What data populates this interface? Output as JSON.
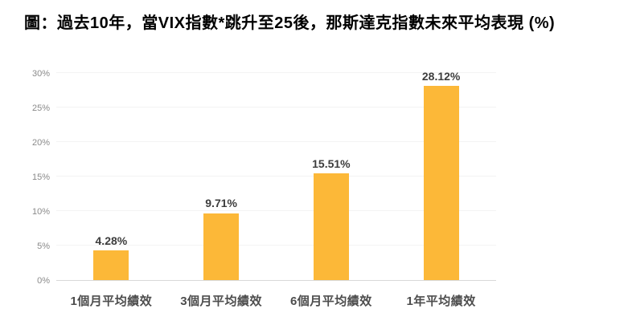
{
  "title": "圖：過去10年，當VIX指數*跳升至25後，那斯達克指數未來平均表現 (%)",
  "colors": {
    "bar": "#FCB838",
    "title_text": "#000000",
    "axis_line": "#d9d9d9",
    "gridline": "#f3f3f3",
    "tick_text": "#8a8a8a",
    "category_text": "#4d4d4d",
    "value_text": "#3d3d3d",
    "background": "#ffffff"
  },
  "chart_data": {
    "type": "bar",
    "title": "圖：過去10年，當VIX指數*跳升至25後，那斯達克指數未來平均表現 (%)",
    "categories": [
      "1個月平均績效",
      "3個月平均績效",
      "6個月平均績效",
      "1年平均績效"
    ],
    "values": [
      4.28,
      9.71,
      15.51,
      28.12
    ],
    "value_labels": [
      "4.28%",
      "9.71%",
      "15.51%",
      "28.12%"
    ],
    "xlabel": "",
    "ylabel": "",
    "ylim": [
      0,
      30
    ],
    "yticks": [
      0,
      5,
      10,
      15,
      20,
      25,
      30
    ],
    "ytick_labels": [
      "0%",
      "5%",
      "10%",
      "15%",
      "20%",
      "25%",
      "30%"
    ],
    "grid": true,
    "legend": "none",
    "bar_color": "#FCB838"
  }
}
